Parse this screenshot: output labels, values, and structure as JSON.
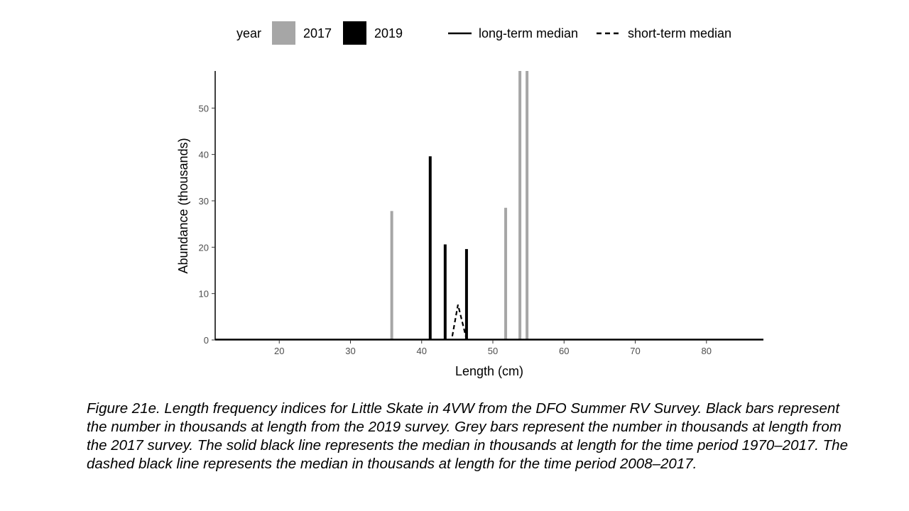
{
  "caption": "Figure 21e. Length frequency indices for Little Skate in 4VW from the DFO Summer RV Survey. Black bars represent the number in thousands at length from the 2019 survey. Grey bars represent the number in thousands at length from the 2017 survey. The solid black line represents the median in thousands at length for the time period 1970–2017. The dashed black line represents the median in thousands at length for the time period 2008–2017.",
  "chart_data": {
    "type": "bar",
    "xlabel": "Length (cm)",
    "ylabel": "Abundance (thousands)",
    "xlim": [
      11,
      88
    ],
    "ylim": [
      0,
      58
    ],
    "xticks": [
      20,
      30,
      40,
      50,
      60,
      70,
      80
    ],
    "yticks": [
      0,
      10,
      20,
      30,
      40,
      50
    ],
    "grid": false,
    "legend": {
      "position": "top",
      "title": "year",
      "items": [
        "2017",
        "2019",
        "long-term median",
        "short-term median"
      ]
    },
    "series": [
      {
        "name": "2017",
        "color": "#a6a6a6",
        "points": [
          {
            "x": 35.8,
            "y": 27.8
          },
          {
            "x": 51.8,
            "y": 28.5
          },
          {
            "x": 53.8,
            "y": 58
          },
          {
            "x": 54.8,
            "y": 58
          }
        ]
      },
      {
        "name": "2019",
        "color": "#000000",
        "points": [
          {
            "x": 41.2,
            "y": 39.6
          },
          {
            "x": 43.3,
            "y": 20.6
          },
          {
            "x": 46.3,
            "y": 19.6
          }
        ]
      }
    ],
    "lines": [
      {
        "name": "long-term median",
        "style": "solid",
        "points": []
      },
      {
        "name": "short-term median",
        "style": "dashed",
        "points": [
          {
            "x": 44.3,
            "y": 0.8
          },
          {
            "x": 45.1,
            "y": 7.6
          },
          {
            "x": 46.2,
            "y": 0.8
          }
        ]
      }
    ]
  }
}
